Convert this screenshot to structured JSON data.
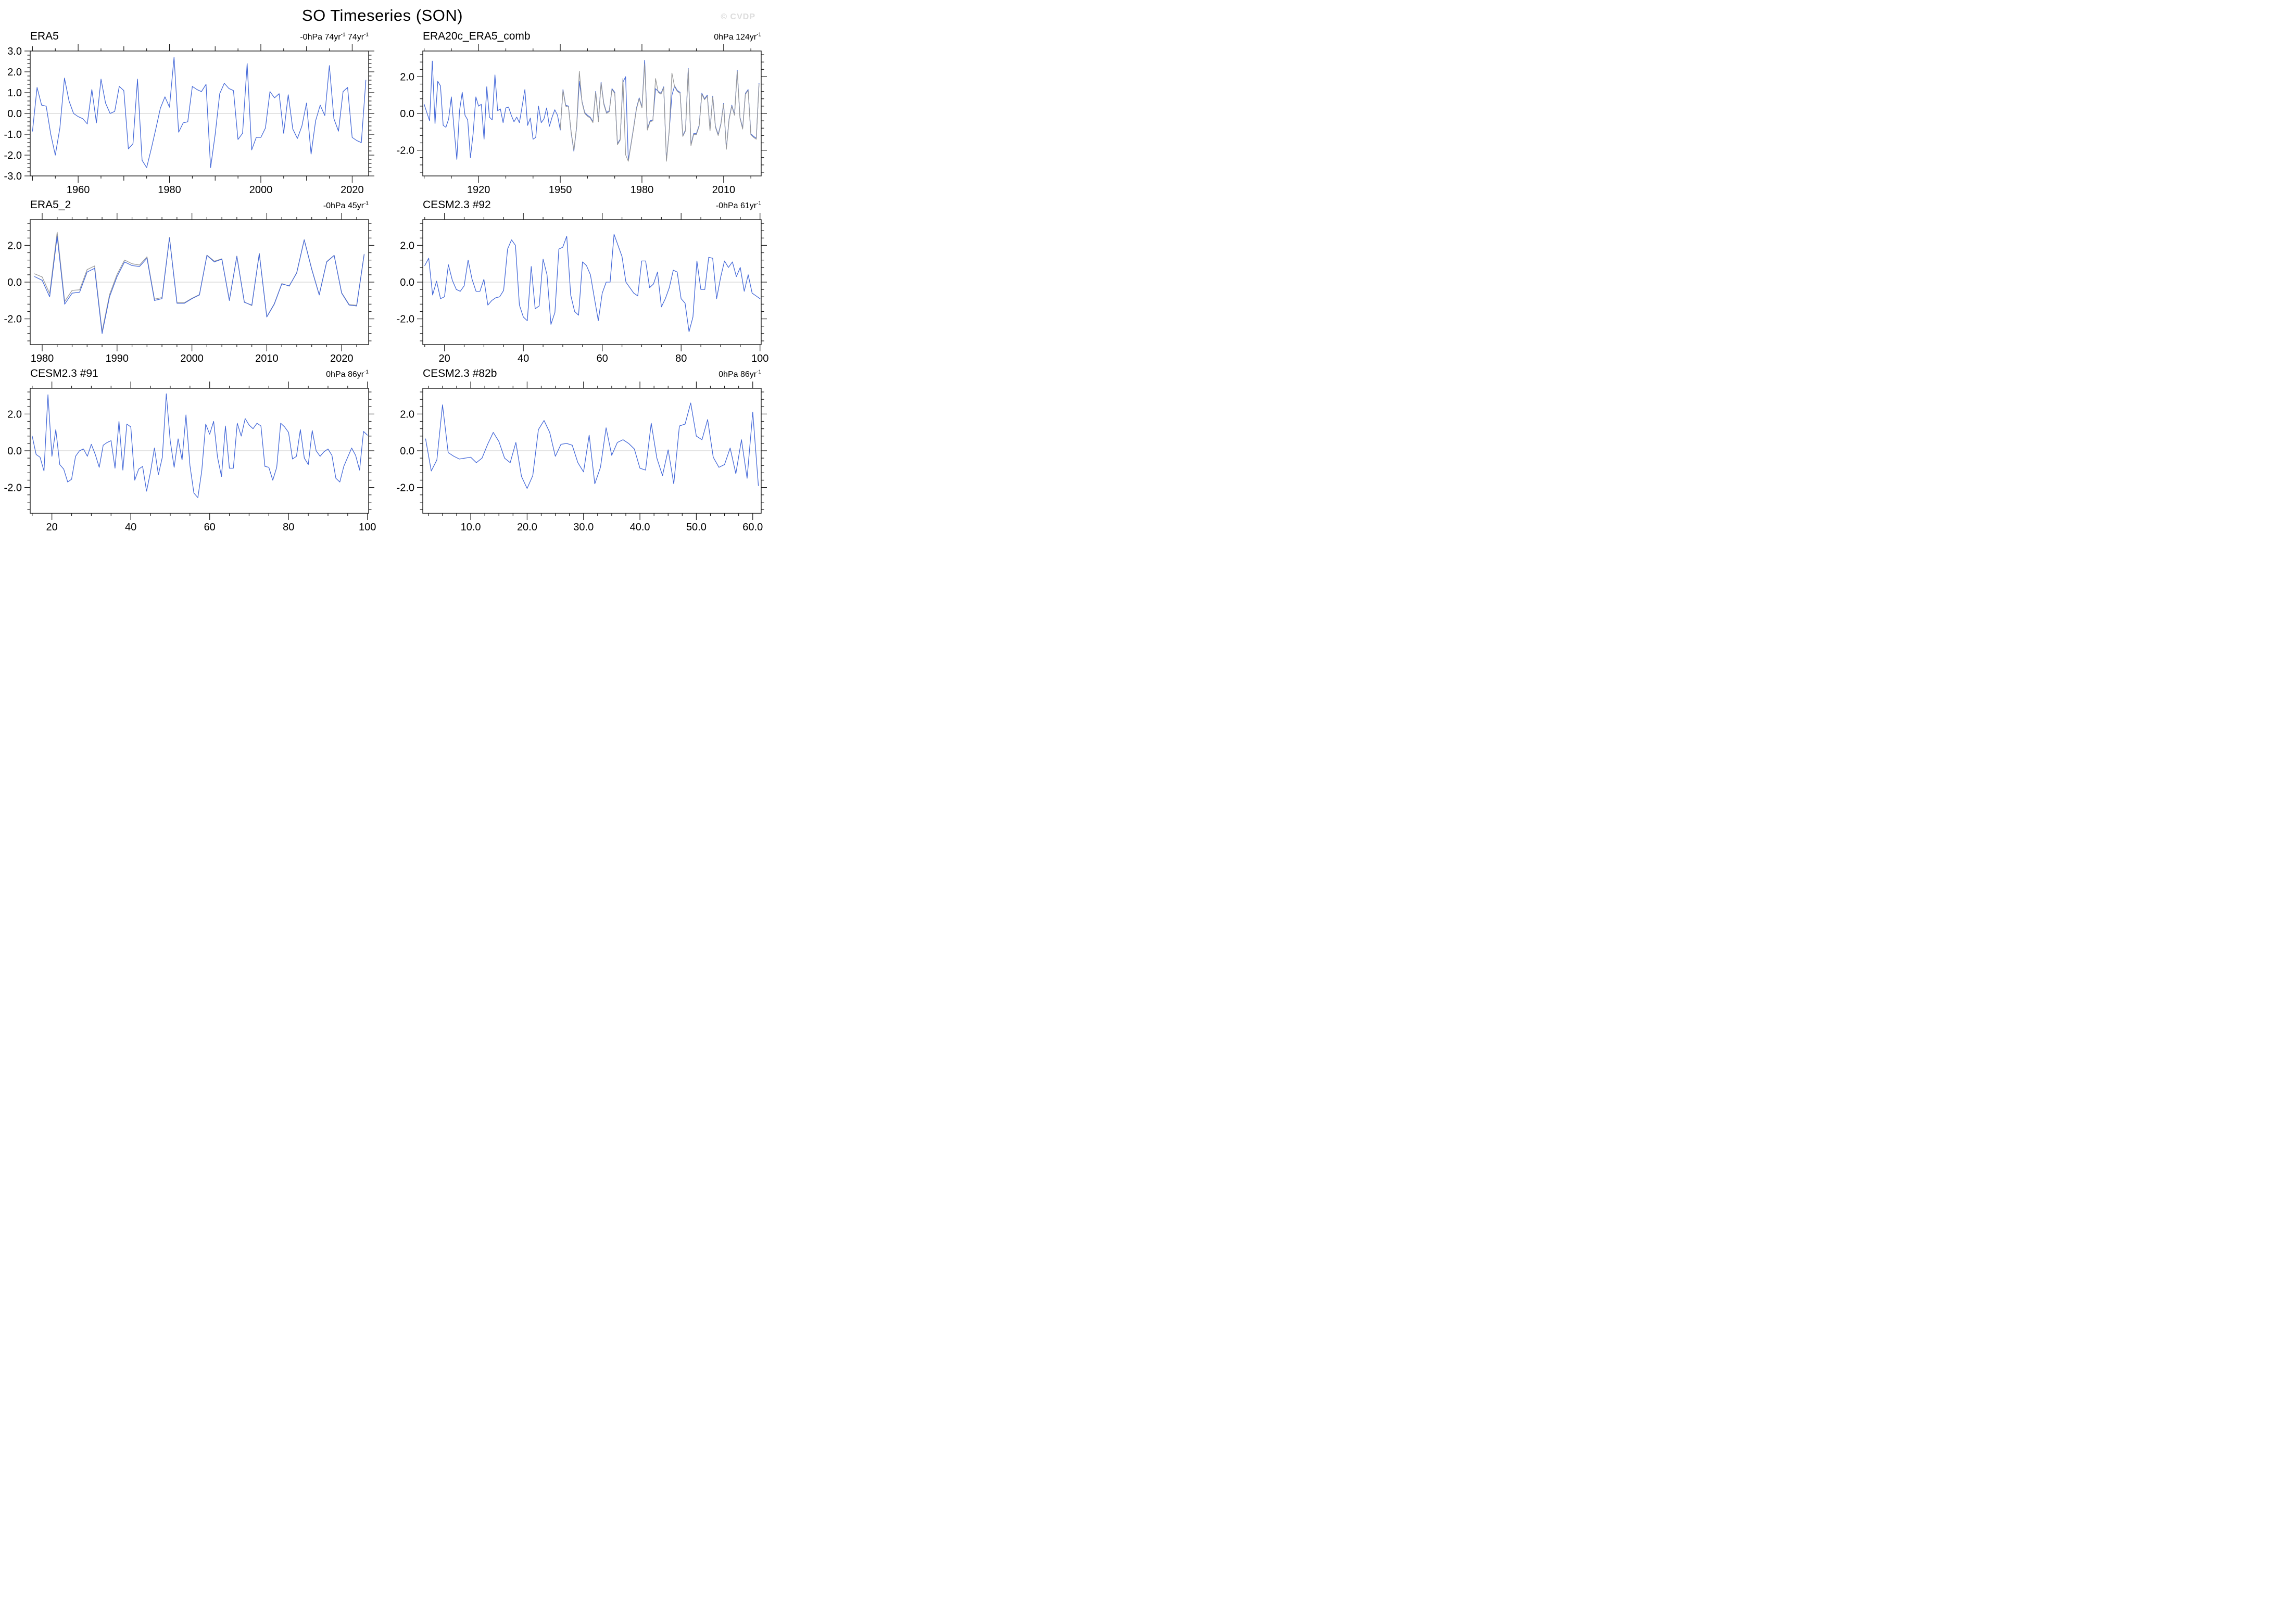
{
  "page": {
    "title": "SO Timeseries (SON)",
    "watermark": "© CVDP"
  },
  "colors": {
    "line_blue": "#4468d8",
    "line_gray": "#999999",
    "zero_line": "#c8c8c8",
    "axis": "#1a1a1a",
    "watermark": "#dcdcdc"
  },
  "chart_data": [
    {
      "type": "line",
      "title": "ERA5",
      "trend_prefix": "-0hPa ",
      "trend_units": [
        {
          "base": "74yr",
          "exp": "-1"
        },
        {
          "base": " 74yr",
          "exp": "-1"
        }
      ],
      "xlim": [
        1949.5,
        2023.6
      ],
      "ylim": [
        -3,
        3
      ],
      "xticks": [
        {
          "x": 1960,
          "label": "1960"
        },
        {
          "x": 1980,
          "label": "1980"
        },
        {
          "x": 2000,
          "label": "2000"
        },
        {
          "x": 2020,
          "label": "2020"
        }
      ],
      "xtick_mid_step": 10,
      "xtick_minor_step": 5,
      "yticks": [
        {
          "y": 3,
          "label": "3.0"
        },
        {
          "y": 2,
          "label": "2.0"
        },
        {
          "y": 1,
          "label": "1.0"
        },
        {
          "y": 0,
          "label": "0.0"
        },
        {
          "y": -1,
          "label": "-1.0"
        },
        {
          "y": -2,
          "label": "-2.0"
        },
        {
          "y": -3,
          "label": "-3.0"
        }
      ],
      "ytick_minor_step": 0.2,
      "zero_line": true,
      "series": [
        {
          "name": "line-blue",
          "color": "#4468d8",
          "x0": 1950,
          "dx": 1,
          "values": [
            -0.85,
            1.25,
            0.4,
            0.35,
            -1.0,
            -2.0,
            -0.7,
            1.7,
            0.6,
            0.0,
            -0.15,
            -0.25,
            -0.5,
            1.15,
            -0.45,
            1.65,
            0.5,
            0.0,
            0.1,
            1.3,
            1.1,
            -1.7,
            -1.45,
            1.65,
            -2.25,
            -2.6,
            -1.7,
            -0.75,
            0.25,
            0.8,
            0.3,
            2.7,
            -0.9,
            -0.45,
            -0.4,
            1.3,
            1.15,
            1.05,
            1.4,
            -2.6,
            -1.0,
            0.95,
            1.45,
            1.2,
            1.1,
            -1.25,
            -0.95,
            2.4,
            -1.75,
            -1.15,
            -1.15,
            -0.7,
            1.05,
            0.75,
            0.95,
            -0.95,
            0.9,
            -0.75,
            -1.2,
            -0.6,
            0.5,
            -1.95,
            -0.35,
            0.4,
            -0.1,
            2.3,
            -0.25,
            -0.85,
            1.05,
            1.25,
            -1.15,
            -1.3,
            -1.4,
            1.6
          ]
        }
      ]
    },
    {
      "type": "line",
      "title": "ERA20c_ERA5_comb",
      "trend_prefix": "0hPa ",
      "trend_units": [
        {
          "base": "124yr",
          "exp": "-1"
        }
      ],
      "xlim": [
        1899.5,
        2023.8
      ],
      "ylim": [
        -3.4,
        3.4
      ],
      "xticks": [
        {
          "x": 1920,
          "label": "1920"
        },
        {
          "x": 1950,
          "label": "1950"
        },
        {
          "x": 1980,
          "label": "1980"
        },
        {
          "x": 2010,
          "label": "2010"
        }
      ],
      "xtick_mid_step": 0,
      "xtick_minor_step": 10,
      "yticks": [
        {
          "y": 2,
          "label": "2.0"
        },
        {
          "y": 0,
          "label": "0.0"
        },
        {
          "y": -2,
          "label": "-2.0"
        }
      ],
      "ytick_minor_step": 0.4,
      "zero_line": true,
      "series": [
        {
          "name": "line-blue",
          "color": "#4468d8",
          "x0": 1900,
          "dx": 1,
          "values": [
            0.5,
            0.05,
            -0.4,
            2.85,
            -0.55,
            1.75,
            1.5,
            -0.65,
            -0.75,
            -0.3,
            0.9,
            -0.85,
            -2.5,
            0.15,
            1.15,
            -0.1,
            -0.35,
            -2.4,
            -1.1,
            0.9,
            0.4,
            0.5,
            -1.4,
            1.45,
            -0.2,
            -0.35,
            2.1,
            0.15,
            0.25,
            -0.5,
            0.3,
            0.35,
            -0.1,
            -0.45,
            -0.2,
            -0.5,
            0.4,
            1.3,
            -0.65,
            -0.25,
            -1.4,
            -1.3,
            0.4,
            -0.5,
            -0.3,
            0.3,
            -0.7,
            -0.2,
            0.2,
            -0.1,
            -0.9,
            1.3,
            0.45,
            0.4,
            -1.05,
            -2.05,
            -0.75,
            1.75,
            0.65,
            0.05,
            -0.1,
            -0.2,
            -0.45,
            1.2,
            -0.4,
            1.7,
            0.55,
            0.05,
            0.15,
            1.35,
            1.15,
            -1.65,
            -1.4,
            1.7,
            2.0,
            -2.55,
            -1.65,
            -0.7,
            0.3,
            0.85,
            0.35,
            2.9,
            -0.85,
            -0.4,
            -0.35,
            1.35,
            1.2,
            1.1,
            1.45,
            -2.55,
            -0.95,
            1.0,
            1.5,
            1.25,
            1.15,
            -1.2,
            -0.9,
            2.45,
            -1.7,
            -1.1,
            -1.1,
            -0.65,
            1.1,
            0.8,
            1.0,
            -0.9,
            0.95,
            -0.7,
            -1.15,
            -0.55,
            0.55,
            -1.9,
            -0.3,
            0.45,
            -0.05,
            2.35,
            -0.2,
            -0.8,
            1.1,
            1.3,
            -1.1,
            -1.25,
            -1.35,
            1.65
          ]
        },
        {
          "name": "line-gray",
          "color": "#999999",
          "x0": 1950,
          "dx": 1,
          "values": [
            -0.85,
            1.25,
            0.4,
            0.35,
            -1.0,
            -2.0,
            -0.7,
            2.3,
            0.6,
            0.0,
            -0.15,
            -0.25,
            -0.5,
            1.15,
            -0.45,
            1.65,
            0.5,
            0.0,
            0.1,
            1.3,
            1.1,
            -1.7,
            -1.45,
            1.9,
            -2.25,
            -2.6,
            -1.7,
            -0.75,
            0.25,
            0.8,
            0.3,
            2.7,
            -0.9,
            -0.45,
            -0.4,
            1.9,
            1.15,
            1.05,
            1.4,
            -2.6,
            -1.0,
            2.2,
            1.45,
            1.2,
            1.1,
            -1.25,
            -0.95,
            2.4,
            -1.75,
            -1.15,
            -1.15,
            -0.7,
            1.05,
            0.75,
            0.95,
            -0.95,
            0.9,
            -0.75,
            -1.2,
            -0.6,
            0.5,
            -1.95,
            -0.35,
            0.4,
            -0.1,
            2.3,
            -0.25,
            -0.85,
            1.05,
            1.25,
            -1.15,
            -1.3,
            -1.4,
            1.6
          ]
        }
      ]
    },
    {
      "type": "line",
      "title": "ERA5_2",
      "trend_prefix": "-0hPa ",
      "trend_units": [
        {
          "base": "45yr",
          "exp": "-1"
        }
      ],
      "xlim": [
        1978.4,
        2023.6
      ],
      "ylim": [
        -3.4,
        3.4
      ],
      "xticks": [
        {
          "x": 1980,
          "label": "1980"
        },
        {
          "x": 1990,
          "label": "1990"
        },
        {
          "x": 2000,
          "label": "2000"
        },
        {
          "x": 2010,
          "label": "2010"
        },
        {
          "x": 2020,
          "label": "2020"
        }
      ],
      "xtick_mid_step": 0,
      "xtick_minor_step": 2,
      "yticks": [
        {
          "y": 2,
          "label": "2.0"
        },
        {
          "y": 0,
          "label": "0.0"
        },
        {
          "y": -2,
          "label": "-2.0"
        }
      ],
      "ytick_minor_step": 0.4,
      "zero_line": true,
      "series": [
        {
          "name": "line-gray",
          "color": "#999999",
          "x0": 1979,
          "dx": 1,
          "values": [
            0.45,
            0.28,
            -0.62,
            2.72,
            -1.05,
            -0.45,
            -0.42,
            0.68,
            0.88,
            -2.68,
            -0.68,
            0.42,
            1.2,
            1.0,
            0.93,
            1.38,
            -0.93,
            -0.84,
            2.44,
            -1.12,
            -1.12,
            -0.88,
            -0.68,
            1.47,
            1.14,
            1.27,
            -0.98,
            1.42,
            -1.08,
            -1.28,
            1.56,
            -1.88,
            -1.18,
            -0.08,
            -0.22,
            0.52,
            2.31,
            0.72,
            -0.68,
            1.12,
            1.46,
            -0.58,
            -1.22,
            -1.26,
            1.52
          ]
        },
        {
          "name": "line-blue",
          "color": "#4468d8",
          "x0": 1979,
          "dx": 1,
          "values": [
            0.3,
            0.1,
            -0.8,
            2.5,
            -1.2,
            -0.6,
            -0.55,
            0.55,
            0.75,
            -2.8,
            -0.8,
            0.3,
            1.1,
            0.9,
            0.85,
            1.3,
            -1.0,
            -0.9,
            2.4,
            -1.15,
            -1.15,
            -0.9,
            -0.7,
            1.45,
            1.1,
            1.25,
            -1.0,
            1.4,
            -1.1,
            -1.25,
            1.55,
            -1.9,
            -1.2,
            -0.1,
            -0.2,
            0.5,
            2.3,
            0.7,
            -0.7,
            1.1,
            1.45,
            -0.6,
            -1.25,
            -1.3,
            1.5
          ]
        }
      ]
    },
    {
      "type": "line",
      "title": "CESM2.3 #92",
      "trend_prefix": "-0hPa ",
      "trend_units": [
        {
          "base": "61yr",
          "exp": "-1"
        }
      ],
      "xlim": [
        14.5,
        100.3
      ],
      "ylim": [
        -3.4,
        3.4
      ],
      "xticks": [
        {
          "x": 20,
          "label": "20"
        },
        {
          "x": 40,
          "label": "40"
        },
        {
          "x": 60,
          "label": "60"
        },
        {
          "x": 80,
          "label": "80"
        },
        {
          "x": 100,
          "label": "100"
        }
      ],
      "xtick_mid_step": 0,
      "xtick_minor_step": 5,
      "yticks": [
        {
          "y": 2,
          "label": "2.0"
        },
        {
          "y": 0,
          "label": "0.0"
        },
        {
          "y": -2,
          "label": "-2.0"
        }
      ],
      "ytick_minor_step": 0.4,
      "zero_line": true,
      "series": [
        {
          "name": "line-blue",
          "color": "#4468d8",
          "x0": 15,
          "dx": 1,
          "values": [
            0.9,
            1.3,
            -0.7,
            0.05,
            -0.9,
            -0.8,
            0.95,
            0.1,
            -0.4,
            -0.5,
            -0.2,
            1.2,
            0.15,
            -0.5,
            -0.5,
            0.15,
            -1.25,
            -1.0,
            -0.85,
            -0.8,
            -0.45,
            1.8,
            2.3,
            2.0,
            -1.25,
            -1.9,
            -2.1,
            0.85,
            -1.45,
            -1.3,
            1.25,
            0.4,
            -2.3,
            -1.65,
            1.8,
            1.9,
            2.5,
            -0.7,
            -1.6,
            -1.8,
            1.1,
            0.9,
            0.4,
            -0.85,
            -2.1,
            -0.6,
            0.0,
            0.0,
            2.6,
            2.0,
            1.4,
            0.0,
            -0.3,
            -0.6,
            -0.75,
            1.15,
            1.15,
            -0.3,
            -0.1,
            0.55,
            -1.35,
            -0.9,
            -0.3,
            0.65,
            0.55,
            -0.9,
            -1.15,
            -2.7,
            -1.9,
            1.15,
            -0.4,
            -0.4,
            1.35,
            1.3,
            -0.9,
            0.25,
            1.15,
            0.8,
            1.1,
            0.3,
            0.8,
            -0.5,
            0.4,
            -0.6,
            -0.75,
            -0.9
          ]
        }
      ]
    },
    {
      "type": "line",
      "title": "CESM2.3 #91",
      "trend_prefix": "0hPa ",
      "trend_units": [
        {
          "base": "86yr",
          "exp": "-1"
        }
      ],
      "xlim": [
        14.5,
        100.3
      ],
      "ylim": [
        -3.4,
        3.4
      ],
      "xticks": [
        {
          "x": 20,
          "label": "20"
        },
        {
          "x": 40,
          "label": "40"
        },
        {
          "x": 60,
          "label": "60"
        },
        {
          "x": 80,
          "label": "80"
        },
        {
          "x": 100,
          "label": "100"
        }
      ],
      "xtick_mid_step": 0,
      "xtick_minor_step": 5,
      "yticks": [
        {
          "y": 2,
          "label": "2.0"
        },
        {
          "y": 0,
          "label": "0.0"
        },
        {
          "y": -2,
          "label": "-2.0"
        }
      ],
      "ytick_minor_step": 0.4,
      "zero_line": true,
      "series": [
        {
          "name": "line-blue",
          "color": "#4468d8",
          "x0": 15,
          "dx": 1,
          "values": [
            0.8,
            -0.2,
            -0.35,
            -1.1,
            3.05,
            -0.3,
            1.15,
            -0.75,
            -1.0,
            -1.7,
            -1.55,
            -0.3,
            0.0,
            0.1,
            -0.3,
            0.35,
            -0.2,
            -0.9,
            0.3,
            0.45,
            0.55,
            -0.95,
            1.6,
            -1.05,
            1.45,
            1.3,
            -1.6,
            -1.0,
            -0.85,
            -2.2,
            -1.15,
            0.15,
            -1.3,
            -0.35,
            3.1,
            0.55,
            -0.9,
            0.65,
            -0.5,
            1.95,
            -0.8,
            -2.3,
            -2.55,
            -1.1,
            1.45,
            0.9,
            1.6,
            -0.35,
            -1.4,
            1.35,
            -0.95,
            -0.95,
            1.5,
            0.8,
            1.75,
            1.4,
            1.2,
            1.5,
            1.35,
            -0.85,
            -0.9,
            -1.6,
            -0.9,
            1.5,
            1.3,
            1.0,
            -0.45,
            -0.3,
            1.15,
            -0.4,
            -0.75,
            1.1,
            0.0,
            -0.3,
            -0.05,
            0.1,
            -0.25,
            -1.5,
            -1.7,
            -0.85,
            -0.35,
            0.15,
            -0.25,
            -1.05,
            1.05,
            0.85
          ]
        }
      ]
    },
    {
      "type": "line",
      "title": "CESM2.3 #82b",
      "trend_prefix": "0hPa ",
      "trend_units": [
        {
          "base": "86yr",
          "exp": "-1"
        }
      ],
      "xlim": [
        1.5,
        61.5
      ],
      "ylim": [
        -3.4,
        3.4
      ],
      "xticks": [
        {
          "x": 10,
          "label": "10.0"
        },
        {
          "x": 20,
          "label": "20.0"
        },
        {
          "x": 30,
          "label": "30.0"
        },
        {
          "x": 40,
          "label": "40.0"
        },
        {
          "x": 50,
          "label": "50.0"
        },
        {
          "x": 60,
          "label": "60.0"
        }
      ],
      "xtick_mid_step": 0,
      "xtick_minor_step": 2.5,
      "yticks": [
        {
          "y": 2,
          "label": "2.0"
        },
        {
          "y": 0,
          "label": "0.0"
        },
        {
          "y": -2,
          "label": "-2.0"
        }
      ],
      "ytick_minor_step": 0.4,
      "zero_line": true,
      "series": [
        {
          "name": "line-blue",
          "color": "#4468d8",
          "x0": 2,
          "dx": 1,
          "values": [
            0.65,
            -1.1,
            -0.5,
            2.5,
            -0.1,
            -0.3,
            -0.45,
            -0.4,
            -0.35,
            -0.65,
            -0.4,
            0.35,
            1.0,
            0.5,
            -0.4,
            -0.65,
            0.45,
            -1.4,
            -2.05,
            -1.35,
            1.15,
            1.65,
            1.0,
            -0.3,
            0.35,
            0.4,
            0.3,
            -0.65,
            -1.15,
            0.85,
            -1.8,
            -0.9,
            1.25,
            -0.25,
            0.45,
            0.6,
            0.4,
            0.1,
            -0.95,
            -1.05,
            1.5,
            -0.4,
            -1.35,
            0.05,
            -1.8,
            1.35,
            1.45,
            2.6,
            0.8,
            0.6,
            1.7,
            -0.35,
            -0.9,
            -0.75,
            0.15,
            -1.25,
            0.6,
            -1.5,
            2.1,
            -1.9
          ]
        }
      ]
    }
  ]
}
